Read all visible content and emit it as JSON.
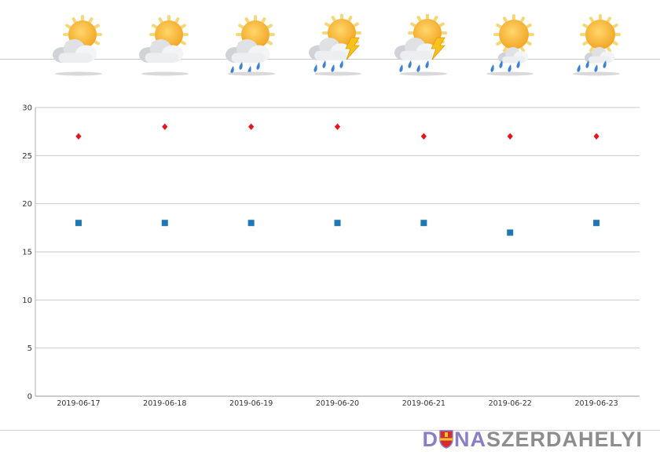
{
  "forecast": {
    "days": [
      {
        "date": "2019-06-17",
        "icon": "sun-cloud-icon",
        "high": 27,
        "low": 18
      },
      {
        "date": "2019-06-18",
        "icon": "sun-cloud-icon",
        "high": 28,
        "low": 18
      },
      {
        "date": "2019-06-19",
        "icon": "sun-cloud-rain-icon",
        "high": 28,
        "low": 18
      },
      {
        "date": "2019-06-20",
        "icon": "sun-cloud-rain-thunder-icon",
        "high": 28,
        "low": 18
      },
      {
        "date": "2019-06-21",
        "icon": "sun-cloud-rain-thunder-icon",
        "high": 27,
        "low": 18
      },
      {
        "date": "2019-06-22",
        "icon": "sun-small-cloud-rain-icon",
        "high": 27,
        "low": 17
      },
      {
        "date": "2019-06-23",
        "icon": "sun-small-cloud-rain-icon",
        "high": 27,
        "low": 18
      }
    ]
  },
  "chart_data": {
    "type": "scatter",
    "categories": [
      "2019-06-17",
      "2019-06-18",
      "2019-06-19",
      "2019-06-20",
      "2019-06-21",
      "2019-06-22",
      "2019-06-23"
    ],
    "series": [
      {
        "values": [
          27,
          28,
          28,
          28,
          27,
          27,
          27
        ],
        "color": "#e8141b",
        "marker": "diamond"
      },
      {
        "values": [
          18,
          18,
          18,
          18,
          18,
          17,
          18
        ],
        "color": "#1f77b4",
        "marker": "square"
      }
    ],
    "y_ticks": [
      0,
      5,
      10,
      15,
      20,
      25,
      30
    ],
    "ylim": [
      0,
      30
    ],
    "grid": true,
    "legend": "none",
    "title": "",
    "xlabel": "",
    "ylabel": ""
  },
  "brand": {
    "part1": "D",
    "part2": "NA",
    "part3": "SZERDAHELYI",
    "colors": {
      "primary": "#8a7fc6",
      "secondary": "#8d8d8d"
    }
  }
}
